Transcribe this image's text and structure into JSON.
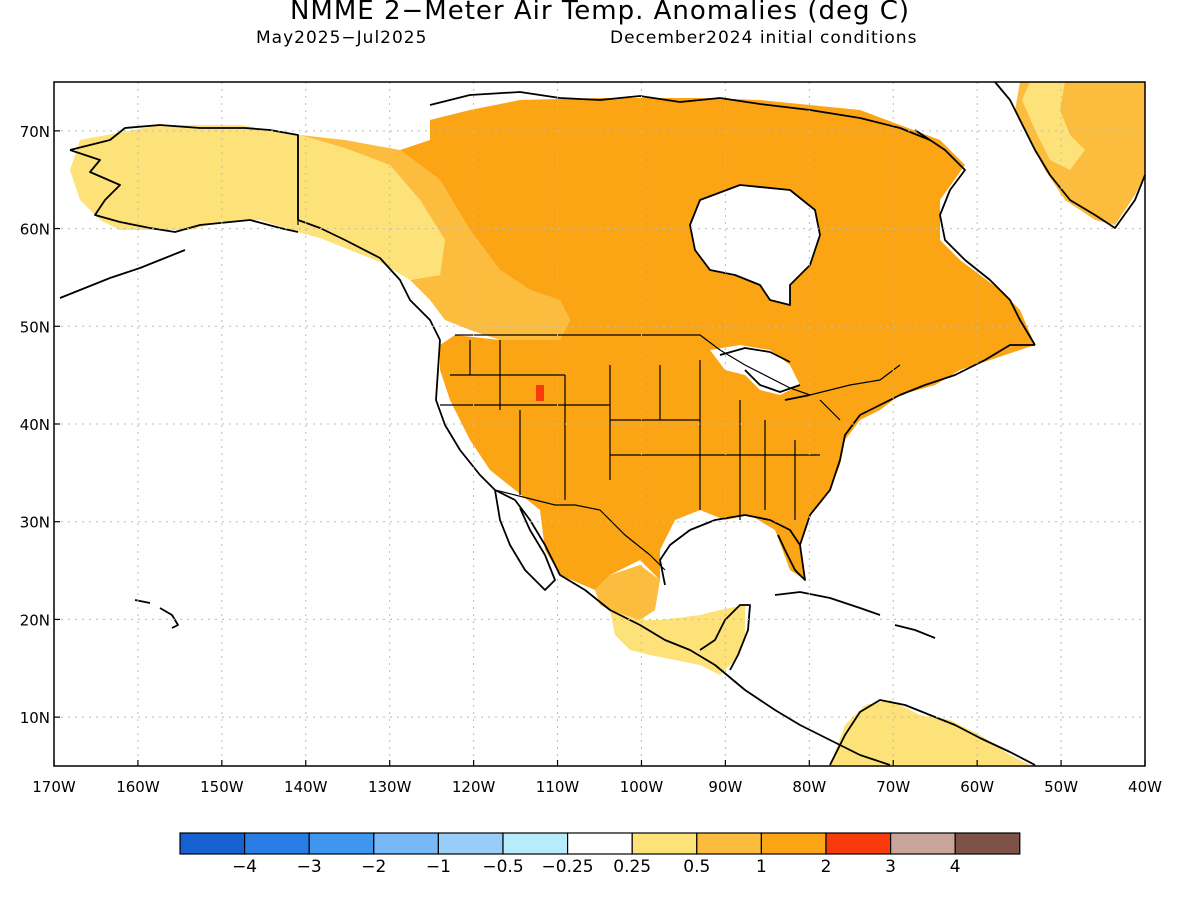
{
  "title": "NMME 2−Meter Air Temp. Anomalies (deg C)",
  "subtitle_left": "May2025−Jul2025",
  "subtitle_right": "December2024 initial conditions",
  "map": {
    "lon_range": [
      -170,
      -40
    ],
    "lat_range": [
      5,
      75
    ],
    "grid": "dotted",
    "lat_labels": [
      "10N",
      "20N",
      "30N",
      "40N",
      "50N",
      "60N",
      "70N"
    ],
    "lon_labels": [
      "170W",
      "160W",
      "150W",
      "140W",
      "130W",
      "120W",
      "110W",
      "100W",
      "90W",
      "80W",
      "70W",
      "60W",
      "50W",
      "40W"
    ],
    "colors": {
      "anom_0_25_0_5": "#fde27a",
      "anom_0_5_1": "#fcbd3e",
      "anom_1_2": "#fba414",
      "anom_2_3": "#f83a0d",
      "coastline": "#000000"
    }
  },
  "colorbar": {
    "colors": [
      "#1760cf",
      "#2a7de4",
      "#3f96f0",
      "#78b8f6",
      "#98cdf9",
      "#b7ecfb",
      "#ffffff",
      "#fde27a",
      "#fcbd3e",
      "#fba414",
      "#f83a0d",
      "#c8a49a",
      "#7e5246"
    ],
    "labels": [
      "−4",
      "−3",
      "−2",
      "−1",
      "−0.5",
      "−0.25",
      "0.25",
      "0.5",
      "1",
      "2",
      "3",
      "4"
    ]
  }
}
